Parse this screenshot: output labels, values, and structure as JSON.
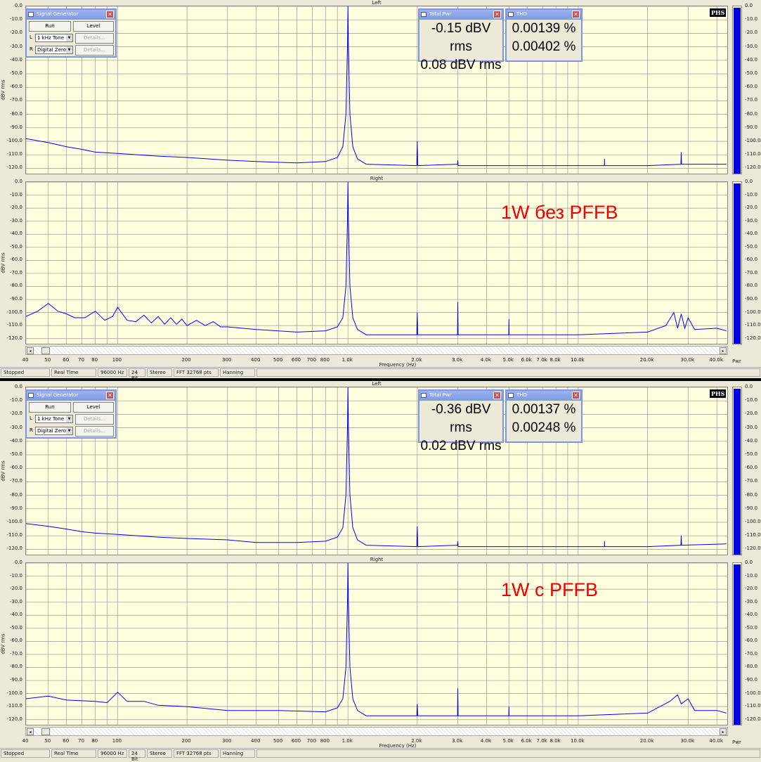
{
  "axis": {
    "x_label": "Frequency (Hz)",
    "y_label": "dBV rms",
    "meter_label": "Pwr",
    "y_ticks": [
      "0.0",
      "-10.0",
      "-20.0",
      "-30.0",
      "-40.0",
      "-50.0",
      "-60.0",
      "-70.0",
      "-80.0",
      "-90.0",
      "-100.0",
      "-110.0",
      "-120.0"
    ],
    "x_ticks": [
      [
        40,
        "40"
      ],
      [
        50,
        "50"
      ],
      [
        60,
        "60"
      ],
      [
        70,
        "70"
      ],
      [
        80,
        "80"
      ],
      [
        100,
        "100"
      ],
      [
        200,
        "200"
      ],
      [
        300,
        "300"
      ],
      [
        400,
        "400"
      ],
      [
        500,
        "500"
      ],
      [
        600,
        "600"
      ],
      [
        700,
        "700"
      ],
      [
        800,
        "800"
      ],
      [
        1000,
        "1.0k"
      ],
      [
        2000,
        "2.0k"
      ],
      [
        3000,
        "3.0k"
      ],
      [
        4000,
        "4.0k"
      ],
      [
        5000,
        "5.0k"
      ],
      [
        6000,
        "6.0k"
      ],
      [
        7000,
        "7.0k"
      ],
      [
        8000,
        "8.0k"
      ],
      [
        10000,
        "10.0k"
      ],
      [
        20000,
        "20.0k"
      ],
      [
        30000,
        "30.0k"
      ],
      [
        40000,
        "40.0k"
      ]
    ],
    "xlim": [
      40,
      45000
    ],
    "ylim": [
      -125,
      0
    ],
    "scale": "log",
    "grid": true,
    "line_color": "#0000ff"
  },
  "logo": "PHS",
  "windows": [
    {
      "siggen": {
        "title": "Signal Generator",
        "run": "Run",
        "level": "Level",
        "l": "L",
        "r": "R",
        "l_sel": "1 kHz Tone",
        "r_sel": "Digital Zero",
        "details": "Details..."
      },
      "total_pwr": {
        "title": "Total Pwr",
        "left": "-0.15 dBV rms",
        "right": "0.08 dBV rms"
      },
      "thd": {
        "title": "THD",
        "left": "0.00139 %",
        "right": "0.00402 %"
      },
      "status": [
        "Stopped",
        "Real Time",
        "96000 Hz",
        "24 Bit",
        "Stereo",
        "FFT 32768 pts",
        "Hanning"
      ],
      "meter_level": [
        0.99,
        0.99
      ],
      "panels": [
        {
          "title": "Left",
          "annotation": "",
          "points": [
            [
              40,
              -98
            ],
            [
              50,
              -101
            ],
            [
              60,
              -104
            ],
            [
              70,
              -106
            ],
            [
              80,
              -108
            ],
            [
              100,
              -109
            ],
            [
              150,
              -111
            ],
            [
              200,
              -112
            ],
            [
              300,
              -114
            ],
            [
              400,
              -115
            ],
            [
              600,
              -116
            ],
            [
              800,
              -115
            ],
            [
              900,
              -112
            ],
            [
              950,
              -104
            ],
            [
              980,
              -80
            ],
            [
              995,
              -30
            ],
            [
              1000,
              0
            ],
            [
              1005,
              -30
            ],
            [
              1020,
              -80
            ],
            [
              1050,
              -104
            ],
            [
              1100,
              -113
            ],
            [
              1200,
              -117
            ],
            [
              1990,
              -118
            ],
            [
              2000,
              -100
            ],
            [
              2010,
              -118
            ],
            [
              2990,
              -117
            ],
            [
              3000,
              -114
            ],
            [
              3010,
              -118
            ],
            [
              5000,
              -118
            ],
            [
              10000,
              -118
            ],
            [
              12990,
              -118
            ],
            [
              13000,
              -113
            ],
            [
              13010,
              -118
            ],
            [
              20000,
              -118
            ],
            [
              27900,
              -117
            ],
            [
              28000,
              -108
            ],
            [
              28100,
              -117
            ],
            [
              44000,
              -117
            ]
          ]
        },
        {
          "title": "Right",
          "annotation": "1W без PFFB",
          "points": [
            [
              40,
              -103
            ],
            [
              45,
              -99
            ],
            [
              50,
              -93
            ],
            [
              55,
              -99
            ],
            [
              60,
              -101
            ],
            [
              65,
              -104
            ],
            [
              72,
              -104
            ],
            [
              80,
              -99
            ],
            [
              88,
              -106
            ],
            [
              95,
              -103
            ],
            [
              100,
              -96
            ],
            [
              110,
              -106
            ],
            [
              120,
              -107
            ],
            [
              130,
              -102
            ],
            [
              140,
              -108
            ],
            [
              150,
              -103
            ],
            [
              160,
              -109
            ],
            [
              170,
              -104
            ],
            [
              180,
              -109
            ],
            [
              190,
              -105
            ],
            [
              200,
              -110
            ],
            [
              220,
              -106
            ],
            [
              240,
              -110
            ],
            [
              260,
              -107
            ],
            [
              280,
              -111
            ],
            [
              300,
              -111
            ],
            [
              400,
              -113
            ],
            [
              600,
              -115
            ],
            [
              800,
              -114
            ],
            [
              900,
              -111
            ],
            [
              950,
              -104
            ],
            [
              980,
              -80
            ],
            [
              995,
              -30
            ],
            [
              1000,
              0
            ],
            [
              1005,
              -30
            ],
            [
              1020,
              -80
            ],
            [
              1050,
              -104
            ],
            [
              1100,
              -113
            ],
            [
              1200,
              -117
            ],
            [
              1990,
              -117
            ],
            [
              2000,
              -100
            ],
            [
              2010,
              -117
            ],
            [
              2990,
              -117
            ],
            [
              3000,
              -92
            ],
            [
              3010,
              -117
            ],
            [
              4990,
              -117
            ],
            [
              5000,
              -105
            ],
            [
              5010,
              -117
            ],
            [
              10000,
              -117
            ],
            [
              20000,
              -115
            ],
            [
              24000,
              -110
            ],
            [
              26000,
              -100
            ],
            [
              27000,
              -112
            ],
            [
              28000,
              -101
            ],
            [
              29000,
              -112
            ],
            [
              30000,
              -104
            ],
            [
              32000,
              -113
            ],
            [
              40000,
              -112
            ],
            [
              44000,
              -114
            ]
          ]
        }
      ]
    },
    {
      "siggen": {
        "title": "Signal Generator",
        "run": "Run",
        "level": "Level",
        "l": "L",
        "r": "R",
        "l_sel": "1 kHz Tone",
        "r_sel": "Digital Zero",
        "details": "Details..."
      },
      "total_pwr": {
        "title": "Total Pwr",
        "left": "-0.36 dBV rms",
        "right": "0.02 dBV rms"
      },
      "thd": {
        "title": "THD",
        "left": "0.00137 %",
        "right": "0.00248 %"
      },
      "status": [
        "Stopped",
        "Real Time",
        "96000 Hz",
        "24 Bit",
        "Stereo",
        "FFT 32768 pts",
        "Hanning"
      ],
      "meter_level": [
        0.99,
        0.99
      ],
      "panels": [
        {
          "title": "Left",
          "annotation": "",
          "points": [
            [
              40,
              -101
            ],
            [
              50,
              -103
            ],
            [
              60,
              -105
            ],
            [
              70,
              -107
            ],
            [
              80,
              -108
            ],
            [
              100,
              -109
            ],
            [
              150,
              -111
            ],
            [
              200,
              -112
            ],
            [
              300,
              -113
            ],
            [
              400,
              -115
            ],
            [
              600,
              -115
            ],
            [
              800,
              -114
            ],
            [
              900,
              -111
            ],
            [
              950,
              -104
            ],
            [
              980,
              -80
            ],
            [
              995,
              -30
            ],
            [
              1000,
              0
            ],
            [
              1005,
              -30
            ],
            [
              1020,
              -80
            ],
            [
              1050,
              -104
            ],
            [
              1100,
              -113
            ],
            [
              1200,
              -117
            ],
            [
              1990,
              -118
            ],
            [
              2000,
              -103
            ],
            [
              2010,
              -118
            ],
            [
              2990,
              -117
            ],
            [
              3000,
              -114
            ],
            [
              3010,
              -118
            ],
            [
              5000,
              -118
            ],
            [
              10000,
              -118
            ],
            [
              12990,
              -118
            ],
            [
              13000,
              -114
            ],
            [
              13010,
              -118
            ],
            [
              20000,
              -118
            ],
            [
              27900,
              -117
            ],
            [
              28000,
              -110
            ],
            [
              28100,
              -117
            ],
            [
              44000,
              -116
            ]
          ]
        },
        {
          "title": "Right",
          "annotation": "1W с PFFB",
          "points": [
            [
              40,
              -104
            ],
            [
              50,
              -102
            ],
            [
              60,
              -105
            ],
            [
              80,
              -106
            ],
            [
              90,
              -107
            ],
            [
              100,
              -99
            ],
            [
              110,
              -106
            ],
            [
              130,
              -106
            ],
            [
              150,
              -109
            ],
            [
              200,
              -110
            ],
            [
              300,
              -113
            ],
            [
              500,
              -113
            ],
            [
              800,
              -114
            ],
            [
              900,
              -111
            ],
            [
              950,
              -104
            ],
            [
              980,
              -80
            ],
            [
              995,
              -30
            ],
            [
              1000,
              0
            ],
            [
              1005,
              -30
            ],
            [
              1020,
              -80
            ],
            [
              1050,
              -104
            ],
            [
              1100,
              -113
            ],
            [
              1200,
              -117
            ],
            [
              1990,
              -117
            ],
            [
              2000,
              -108
            ],
            [
              2010,
              -117
            ],
            [
              2990,
              -117
            ],
            [
              3000,
              -96
            ],
            [
              3010,
              -117
            ],
            [
              4990,
              -117
            ],
            [
              5000,
              -110
            ],
            [
              5010,
              -117
            ],
            [
              10000,
              -117
            ],
            [
              20000,
              -115
            ],
            [
              25000,
              -106
            ],
            [
              27000,
              -101
            ],
            [
              28000,
              -108
            ],
            [
              30000,
              -104
            ],
            [
              32000,
              -113
            ],
            [
              40000,
              -113
            ],
            [
              44000,
              -115
            ]
          ]
        }
      ]
    }
  ]
}
